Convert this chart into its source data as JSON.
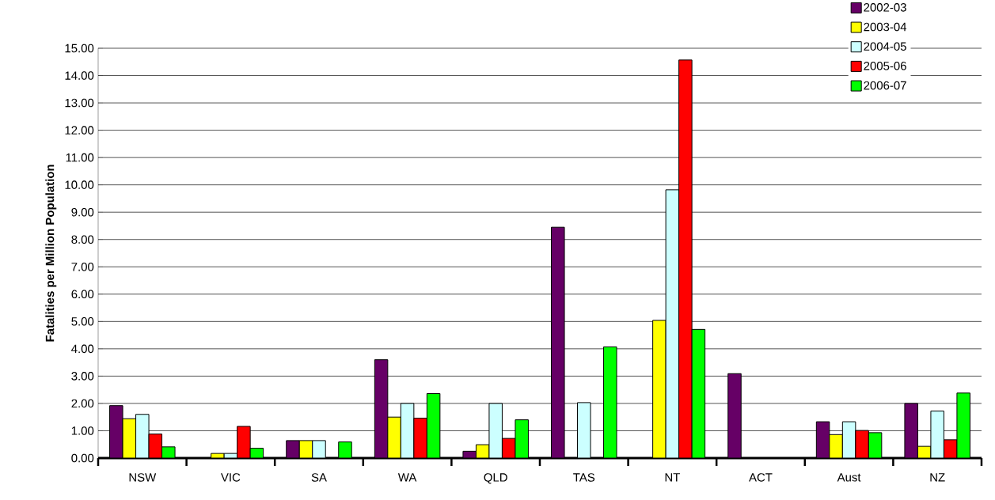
{
  "chart_data": {
    "type": "bar",
    "ylabel": "Fatalities per Million Population",
    "categories": [
      "NSW",
      "VIC",
      "SA",
      "WA",
      "QLD",
      "TAS",
      "NT",
      "ACT",
      "Aust",
      "NZ"
    ],
    "series": [
      {
        "name": "2002-03",
        "color": "#660066",
        "values": [
          1.92,
          null,
          0.64,
          3.6,
          0.25,
          8.45,
          null,
          3.09,
          1.33,
          2.0
        ]
      },
      {
        "name": "2003-04",
        "color": "#ffff00",
        "values": [
          1.44,
          0.17,
          0.64,
          1.5,
          0.49,
          null,
          5.04,
          null,
          0.86,
          0.43
        ]
      },
      {
        "name": "2004-05",
        "color": "#ccffff",
        "values": [
          1.6,
          0.17,
          0.64,
          2.0,
          2.0,
          2.03,
          9.82,
          null,
          1.33,
          1.72
        ]
      },
      {
        "name": "2005-06",
        "color": "#ff0000",
        "values": [
          0.88,
          1.16,
          null,
          1.46,
          0.72,
          null,
          14.57,
          null,
          1.01,
          0.67
        ]
      },
      {
        "name": "2006-07",
        "color": "#00ff00",
        "values": [
          0.41,
          0.36,
          0.59,
          2.36,
          1.4,
          4.07,
          4.71,
          null,
          0.93,
          2.38
        ]
      }
    ],
    "ylim": [
      0,
      15
    ],
    "yticks": [
      {
        "value": 0,
        "label": "0.00"
      },
      {
        "value": 1,
        "label": "1.00"
      },
      {
        "value": 2,
        "label": "2.00"
      },
      {
        "value": 3,
        "label": "3.00"
      },
      {
        "value": 4,
        "label": "4.00"
      },
      {
        "value": 5,
        "label": "5.00"
      },
      {
        "value": 6,
        "label": "6.00"
      },
      {
        "value": 7,
        "label": "7.00"
      },
      {
        "value": 8,
        "label": "8.00"
      },
      {
        "value": 9,
        "label": "9.00"
      },
      {
        "value": 10,
        "label": "10.00"
      },
      {
        "value": 11,
        "label": "11.00"
      },
      {
        "value": 12,
        "label": "12.00"
      },
      {
        "value": 13,
        "label": "13.00"
      },
      {
        "value": 14,
        "label": "14.00"
      },
      {
        "value": 15,
        "label": "15.00"
      }
    ],
    "grid": "y",
    "legend": "top right"
  }
}
